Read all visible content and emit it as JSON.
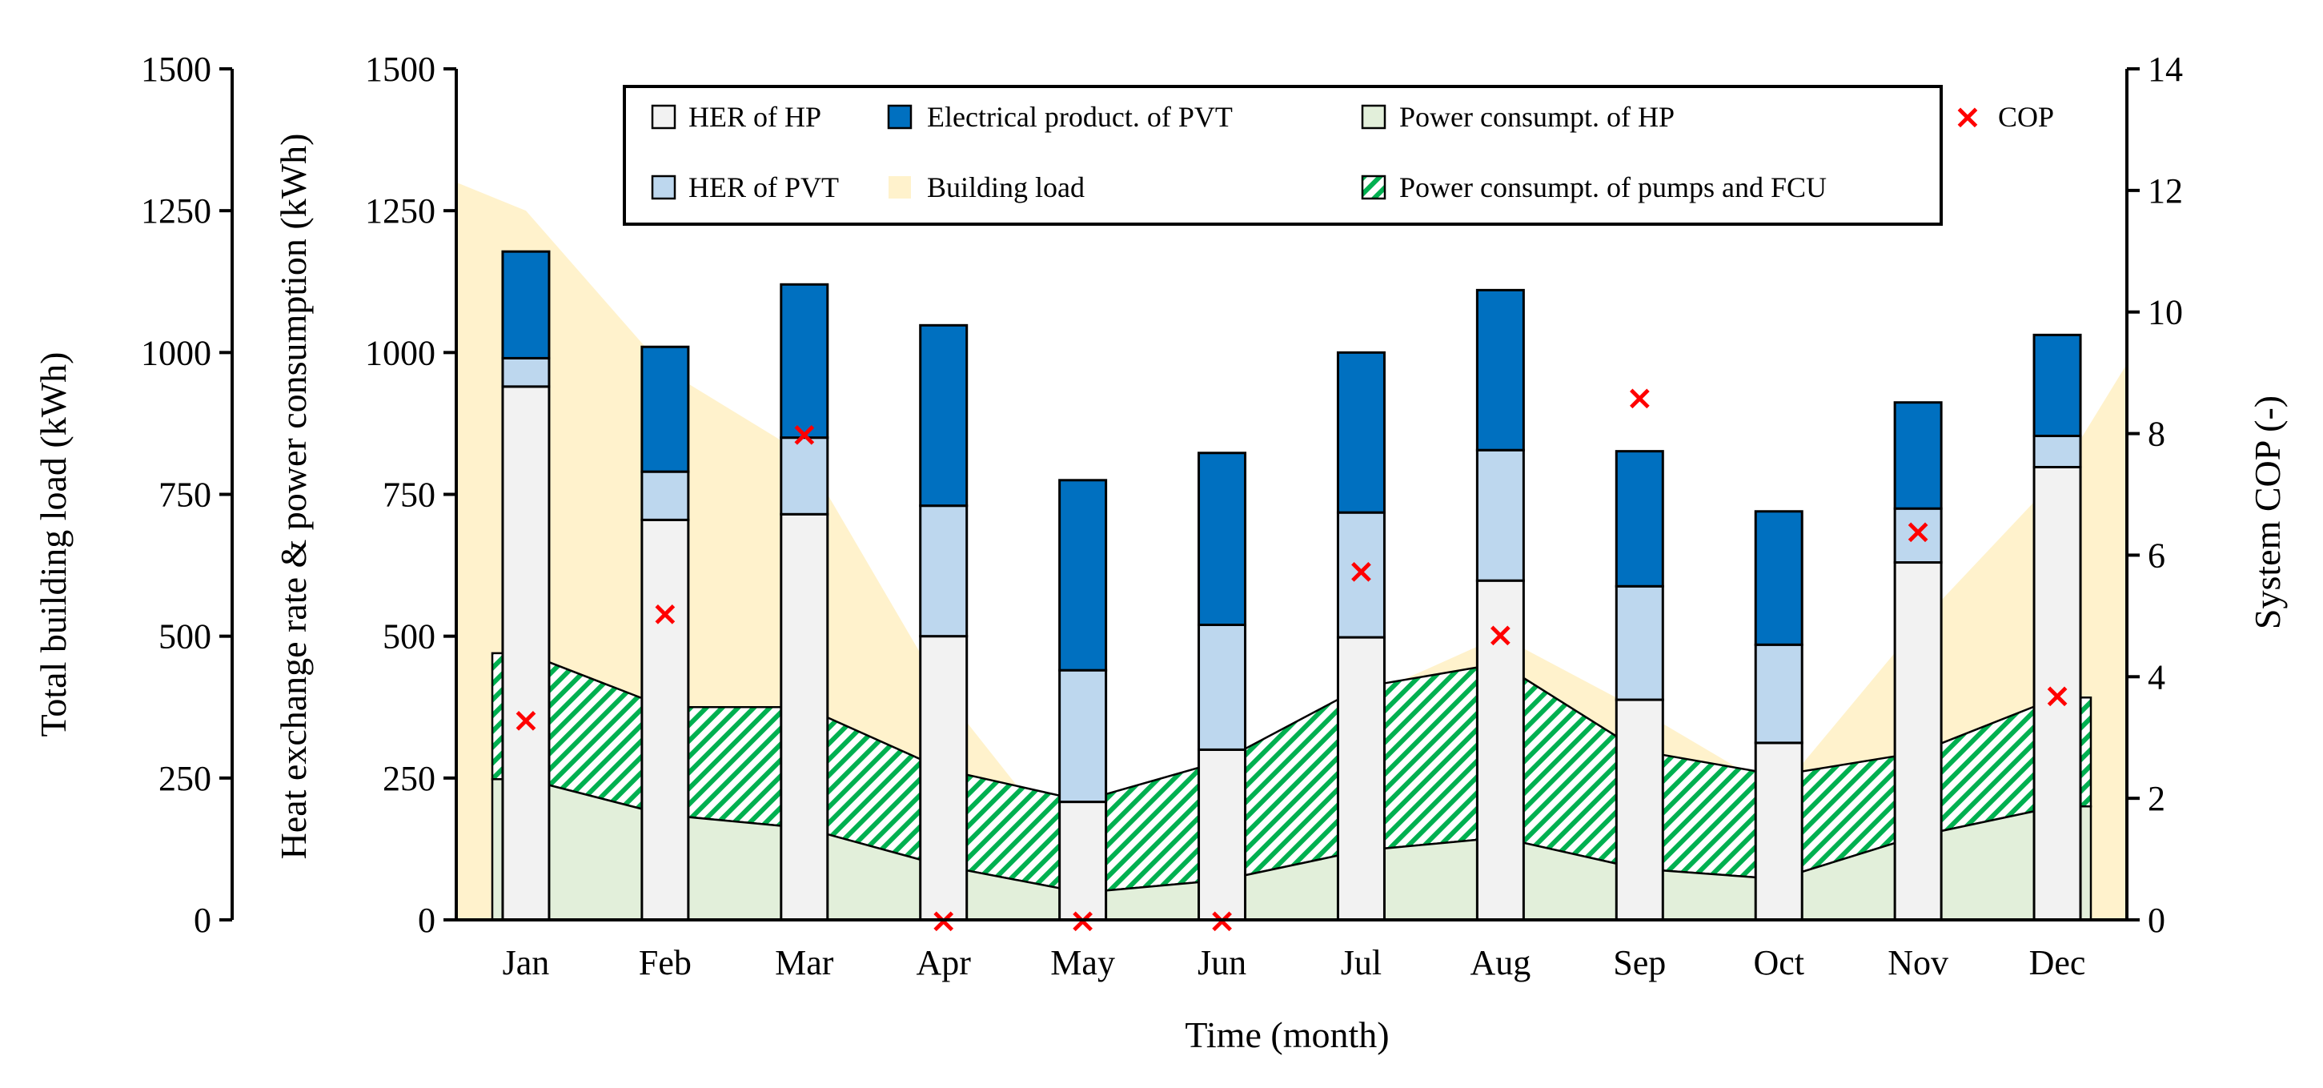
{
  "chart_data": {
    "type": "bar",
    "categories": [
      "Jan",
      "Feb",
      "Mar",
      "Apr",
      "May",
      "Jun",
      "Jul",
      "Aug",
      "Sep",
      "Oct",
      "Nov",
      "Dec"
    ],
    "xlabel": "Time (month)",
    "ylabel_outer": "Total building load (kWh)",
    "ylabel": "Heat exchange rate & power consumption (kWh)",
    "ylabel_right": "System COP (-)",
    "ylim": [
      0,
      1500
    ],
    "yticks": [
      0,
      250,
      500,
      750,
      1000,
      1250,
      1500
    ],
    "yticks_right": [
      0,
      2,
      4,
      6,
      8,
      10,
      12,
      14
    ],
    "ylim_right": [
      0,
      14
    ],
    "legend_position": "top-right (inside plot)",
    "colors": {
      "her_hp": "#f2f2f2",
      "her_pvt": "#bdd7ee",
      "elec_pvt": "#0070c0",
      "building_load": "#fff2cc",
      "power_hp": "#e2efda",
      "power_pumps_hatch": "#00b050",
      "cop": "#ff0000",
      "outline": "#000000"
    },
    "series": [
      {
        "name": "HER of HP",
        "kind": "stacked-bar",
        "values": [
          940,
          705,
          715,
          500,
          208,
          300,
          498,
          598,
          388,
          312,
          630,
          798
        ]
      },
      {
        "name": "HER of PVT",
        "kind": "stacked-bar",
        "values": [
          50,
          85,
          135,
          230,
          232,
          220,
          220,
          230,
          200,
          173,
          95,
          55
        ]
      },
      {
        "name": "Electrical product. of PVT",
        "kind": "stacked-bar",
        "values": [
          188,
          220,
          270,
          318,
          335,
          303,
          282,
          282,
          238,
          235,
          187,
          178
        ]
      },
      {
        "name": "Building load",
        "kind": "area",
        "x": [
          -0.5,
          0,
          1,
          2,
          3,
          4,
          5,
          6,
          7,
          8,
          9,
          10,
          11,
          11.5
        ],
        "values": [
          1300,
          1250,
          970,
          820,
          400,
          90,
          80,
          390,
          500,
          370,
          225,
          520,
          780,
          980
        ]
      },
      {
        "name": "Power consumpt. of HP",
        "kind": "area",
        "values": [
          248,
          185,
          162,
          95,
          48,
          70,
          122,
          145,
          90,
          72,
          148,
          200
        ]
      },
      {
        "name": "Power consumpt. of pumps and FCU",
        "kind": "hatched-band",
        "values": [
          470,
          375,
          375,
          265,
          210,
          280,
          410,
          452,
          298,
          255,
          295,
          392
        ]
      },
      {
        "name": "COP",
        "kind": "scatter",
        "axis": "right",
        "values": [
          3.3,
          5.05,
          8.0,
          0,
          0,
          0,
          5.75,
          4.7,
          8.6,
          null,
          6.4,
          3.7
        ]
      }
    ]
  }
}
